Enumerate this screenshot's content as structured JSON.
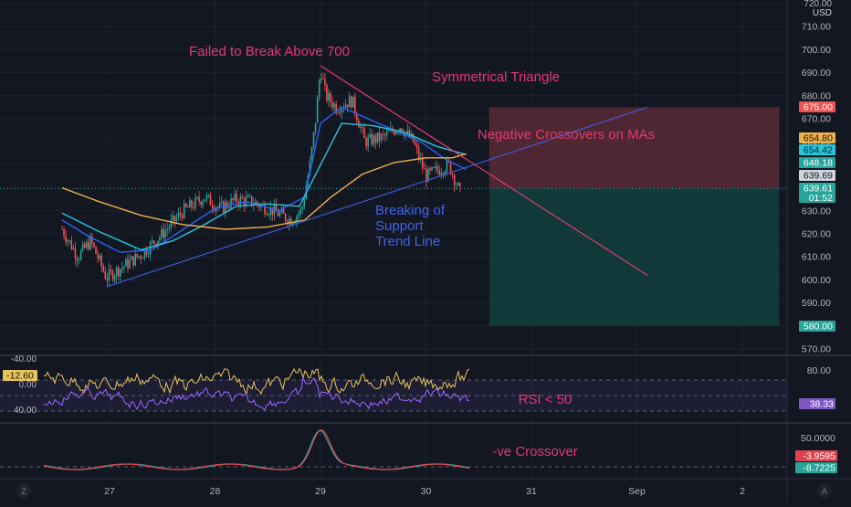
{
  "header": {
    "top_price": "720.00",
    "currency": "USD"
  },
  "annotations": {
    "failed_break": "Failed to Break Above 700",
    "triangle": "Symmetrical Triangle",
    "crossovers": "Negative Crossovers on MAs",
    "breaking": [
      "Breaking of",
      "Support",
      "Trend Line"
    ],
    "rsi_note": "RSI < 50",
    "macd_note": "-ve Crossover"
  },
  "colors": {
    "background": "#131722",
    "grid": "#1e222d",
    "bull_candle": "#26a69a",
    "bear_candle": "#ef5350",
    "ma_fast": "#2962ff",
    "ma_mid": "#26c6da",
    "ma_slow": "#f0b04a",
    "trendline_support": "#3f5ad8",
    "trendline_resistance": "#e23a72",
    "annotation_pink": "#e23a72",
    "annotation_blue": "#3f63e6",
    "stop_zone": "#5a2a35",
    "target_zone": "#123f3d",
    "williams": "#e8c35a",
    "rsi": "#9b66ff",
    "macd_fast": "#e0434e",
    "macd_slow": "#26a69a"
  },
  "price_badges": [
    {
      "label": "675.00",
      "value": 675.0,
      "bg": "#ef5350",
      "fg": "#ffffff"
    },
    {
      "label": "654.80",
      "value": 654.8,
      "bg": "#f0b04a",
      "fg": "#131722"
    },
    {
      "label": "654.42",
      "value": 654.42,
      "bg": "#26c6da",
      "fg": "#131722"
    },
    {
      "label": "648.18",
      "value": 648.18,
      "bg": "#26a69a",
      "fg": "#ffffff"
    },
    {
      "label": "639.69",
      "value": 639.69,
      "bg": "#d1d4dc",
      "fg": "#131722"
    },
    {
      "label": "639.61",
      "value": 639.61,
      "bg": "#26a69a",
      "fg": "#ffffff",
      "sub": "01:52"
    },
    {
      "label": "580.00",
      "value": 580.0,
      "bg": "#26a69a",
      "fg": "#ffffff"
    }
  ],
  "indicator_labels": {
    "williams_current": "-12.60",
    "rsi_current": "38.33",
    "macd_a": "-3.9595",
    "macd_b": "-8.7225"
  },
  "chart_data": {
    "type": "candlestick",
    "x_ticks": [
      "27",
      "28",
      "29",
      "30",
      "31",
      "Sep",
      "2"
    ],
    "y_ticks": [
      "570.00",
      "580.00",
      "590.00",
      "600.00",
      "610.00",
      "620.00",
      "630.00",
      "640.00",
      "650.00",
      "660.00",
      "670.00",
      "680.00",
      "690.00",
      "700.00",
      "710.00",
      "720.00"
    ],
    "ylim": [
      566,
      722
    ],
    "current_price": 639.61,
    "price_path": [
      {
        "d": 26.55,
        "p": 622
      },
      {
        "d": 26.7,
        "p": 610
      },
      {
        "d": 26.82,
        "p": 617
      },
      {
        "d": 26.97,
        "p": 601
      },
      {
        "d": 27.1,
        "p": 605
      },
      {
        "d": 27.3,
        "p": 611
      },
      {
        "d": 27.5,
        "p": 620
      },
      {
        "d": 27.7,
        "p": 630
      },
      {
        "d": 27.9,
        "p": 636
      },
      {
        "d": 28.05,
        "p": 631
      },
      {
        "d": 28.2,
        "p": 635
      },
      {
        "d": 28.35,
        "p": 634
      },
      {
        "d": 28.55,
        "p": 630
      },
      {
        "d": 28.72,
        "p": 626
      },
      {
        "d": 28.82,
        "p": 630
      },
      {
        "d": 28.9,
        "p": 650
      },
      {
        "d": 28.95,
        "p": 668
      },
      {
        "d": 29.0,
        "p": 692
      },
      {
        "d": 29.05,
        "p": 680
      },
      {
        "d": 29.15,
        "p": 675
      },
      {
        "d": 29.3,
        "p": 678
      },
      {
        "d": 29.42,
        "p": 660
      },
      {
        "d": 29.6,
        "p": 662
      },
      {
        "d": 29.75,
        "p": 667
      },
      {
        "d": 29.88,
        "p": 660
      },
      {
        "d": 30.0,
        "p": 645
      },
      {
        "d": 30.12,
        "p": 648
      },
      {
        "d": 30.22,
        "p": 650
      },
      {
        "d": 30.33,
        "p": 637
      }
    ],
    "moving_averages": [
      {
        "id": "ma_fast",
        "points": [
          [
            26.55,
            626
          ],
          [
            26.8,
            619
          ],
          [
            27.1,
            612
          ],
          [
            27.4,
            613
          ],
          [
            27.7,
            622
          ],
          [
            28.0,
            631
          ],
          [
            28.3,
            634
          ],
          [
            28.6,
            630
          ],
          [
            28.85,
            636
          ],
          [
            29.0,
            668
          ],
          [
            29.2,
            675
          ],
          [
            29.45,
            670
          ],
          [
            29.7,
            665
          ],
          [
            29.95,
            660
          ],
          [
            30.2,
            652
          ],
          [
            30.38,
            648
          ]
        ]
      },
      {
        "id": "ma_mid",
        "points": [
          [
            26.55,
            629
          ],
          [
            26.9,
            621
          ],
          [
            27.3,
            613
          ],
          [
            27.6,
            617
          ],
          [
            27.9,
            624
          ],
          [
            28.2,
            632
          ],
          [
            28.5,
            633
          ],
          [
            28.8,
            632
          ],
          [
            29.0,
            650
          ],
          [
            29.2,
            668
          ],
          [
            29.5,
            667
          ],
          [
            29.8,
            664
          ],
          [
            30.1,
            658
          ],
          [
            30.38,
            654.4
          ]
        ]
      },
      {
        "id": "ma_slow",
        "points": [
          [
            26.55,
            640
          ],
          [
            26.9,
            634
          ],
          [
            27.3,
            628
          ],
          [
            27.7,
            624
          ],
          [
            28.1,
            622
          ],
          [
            28.5,
            623
          ],
          [
            28.85,
            626
          ],
          [
            29.1,
            636
          ],
          [
            29.4,
            646
          ],
          [
            29.7,
            651
          ],
          [
            30.0,
            653
          ],
          [
            30.25,
            653
          ],
          [
            30.38,
            654.8
          ]
        ]
      }
    ],
    "trendlines": [
      {
        "id": "support",
        "from": [
          26.97,
          597
        ],
        "to": [
          32.1,
          675
        ]
      },
      {
        "id": "resistance",
        "from": [
          29.0,
          693
        ],
        "to": [
          32.1,
          602
        ]
      }
    ],
    "zones": [
      {
        "id": "stop",
        "from_x": 30.6,
        "to_x": 33.35,
        "low": 639.69,
        "high": 675.0
      },
      {
        "id": "target",
        "from_x": 30.6,
        "to_x": 33.35,
        "low": 580.0,
        "high": 639.69
      }
    ],
    "williams_r": {
      "y_ticks": [
        "-40.00",
        "0.00",
        "40.00"
      ],
      "current": -12.6
    },
    "rsi": {
      "y_ticks": [
        "80.00"
      ],
      "current": 38.33,
      "band": [
        30,
        70
      ]
    },
    "macd": {
      "y_ticks": [
        "50.0000"
      ],
      "a": -3.9595,
      "b": -8.7225
    }
  }
}
